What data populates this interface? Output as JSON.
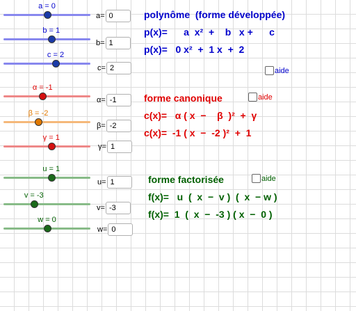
{
  "colors": {
    "blue": "#0000cc",
    "red": "#e00000",
    "green": "#006000",
    "blue_slider": "#8888ee",
    "red_slider": "#ee8888",
    "orange_slider": "#f5b87a",
    "green_slider": "#88bb88",
    "orange_text": "#e07800"
  },
  "sliders": [
    {
      "caption": "a = 0",
      "level": 0.5,
      "input_label": "a=",
      "value": "0"
    },
    {
      "caption": "b = 1",
      "level": 0.55,
      "input_label": "b=",
      "value": "1"
    },
    {
      "caption": "c = 2",
      "level": 0.6,
      "input_label": "c=",
      "value": "2"
    },
    {
      "caption": "α = -1",
      "level": 0.45,
      "input_label": "α=",
      "value": "-1"
    },
    {
      "caption": "β = -2",
      "level": 0.4,
      "input_label": "β=",
      "value": "-2"
    },
    {
      "caption": "γ = 1",
      "level": 0.55,
      "input_label": "γ=",
      "value": "1"
    },
    {
      "caption": "u = 1",
      "level": 0.55,
      "input_label": "u=",
      "value": "1"
    },
    {
      "caption": "v = -3",
      "level": 0.35,
      "input_label": "v=",
      "value": "-3"
    },
    {
      "caption": "w = 0",
      "level": 0.5,
      "input_label": "w=",
      "value": "0"
    }
  ],
  "developed": {
    "title": "polynôme  (forme développée)",
    "general": "p(x)=      a  x²  +    b   x +      c",
    "numeric": "p(x)=   0 x²  +  1 x  +  2",
    "aide_label": "aide"
  },
  "canonical": {
    "title": "forme canonique",
    "general": "c(x)=   α ( x  −    β  )²  +  γ",
    "numeric": "c(x)=  -1 ( x  −  -2 )²  +  1",
    "aide_label": "aide"
  },
  "factored": {
    "title": "forme factorisée",
    "general": "f(x)=   u  (  x  −  v )  (  x  − w )",
    "numeric": "f(x)=  1  (  x  −  -3 ) ( x  −  0 )",
    "aide_label": "aide"
  }
}
